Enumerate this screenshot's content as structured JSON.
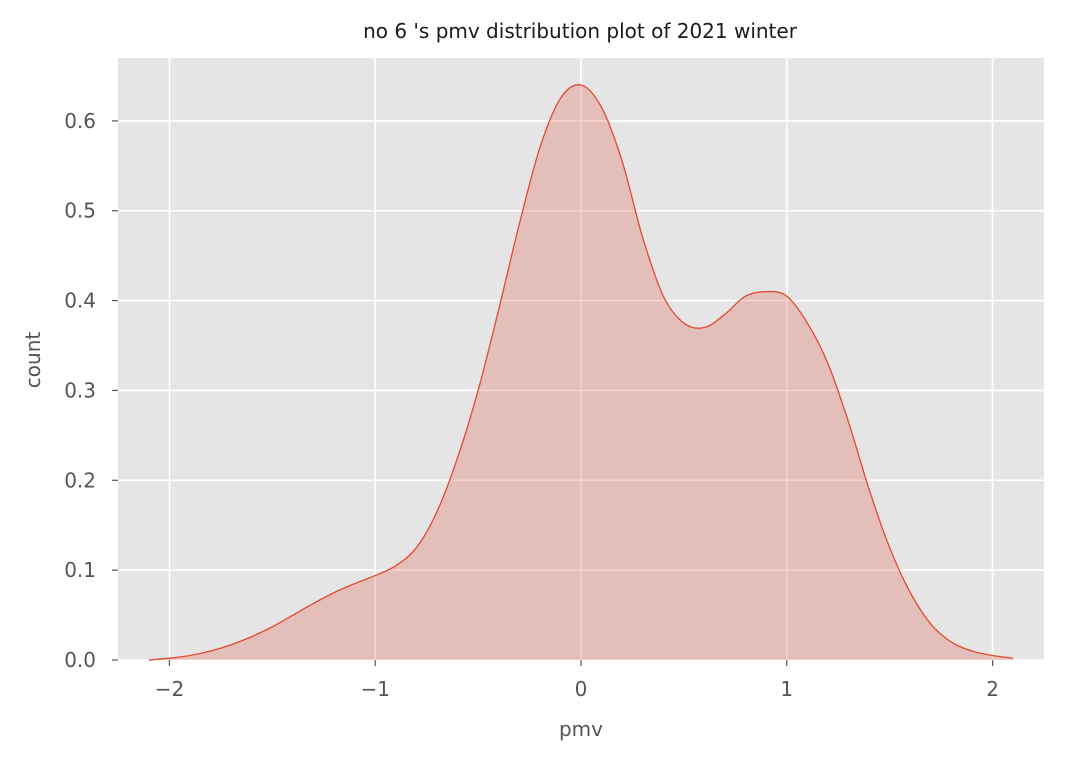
{
  "chart_data": {
    "type": "area",
    "title": "no 6 's pmv distribution plot of 2021 winter",
    "xlabel": "pmv",
    "ylabel": "count",
    "xlim": [
      -2.25,
      2.25
    ],
    "ylim": [
      0.0,
      0.67
    ],
    "xticks": [
      -2,
      -1,
      0,
      1,
      2
    ],
    "xtick_labels": [
      "−2",
      "−1",
      "0",
      "1",
      "2"
    ],
    "yticks": [
      0.0,
      0.1,
      0.2,
      0.3,
      0.4,
      0.5,
      0.6
    ],
    "ytick_labels": [
      "0.0",
      "0.1",
      "0.2",
      "0.3",
      "0.4",
      "0.5",
      "0.6"
    ],
    "grid": true,
    "style": {
      "background": "#e5e5e5",
      "grid": "#ffffff",
      "line": "#e24a33",
      "fill": "#e24a33",
      "fill_opacity": 0.25
    },
    "series": [
      {
        "x": [
          -2.1,
          -2.0,
          -1.9,
          -1.8,
          -1.7,
          -1.6,
          -1.5,
          -1.4,
          -1.3,
          -1.2,
          -1.1,
          -1.0,
          -0.9,
          -0.8,
          -0.7,
          -0.6,
          -0.5,
          -0.4,
          -0.3,
          -0.2,
          -0.1,
          0.0,
          0.1,
          0.2,
          0.3,
          0.4,
          0.5,
          0.6,
          0.7,
          0.8,
          0.9,
          1.0,
          1.1,
          1.2,
          1.3,
          1.4,
          1.5,
          1.6,
          1.7,
          1.8,
          1.9,
          2.0,
          2.1
        ],
        "y": [
          0.0,
          0.002,
          0.005,
          0.01,
          0.017,
          0.026,
          0.037,
          0.05,
          0.063,
          0.075,
          0.085,
          0.094,
          0.105,
          0.125,
          0.165,
          0.225,
          0.3,
          0.39,
          0.485,
          0.57,
          0.625,
          0.64,
          0.615,
          0.555,
          0.47,
          0.405,
          0.375,
          0.37,
          0.385,
          0.405,
          0.41,
          0.405,
          0.375,
          0.33,
          0.265,
          0.19,
          0.125,
          0.075,
          0.04,
          0.02,
          0.01,
          0.005,
          0.002
        ]
      }
    ]
  }
}
